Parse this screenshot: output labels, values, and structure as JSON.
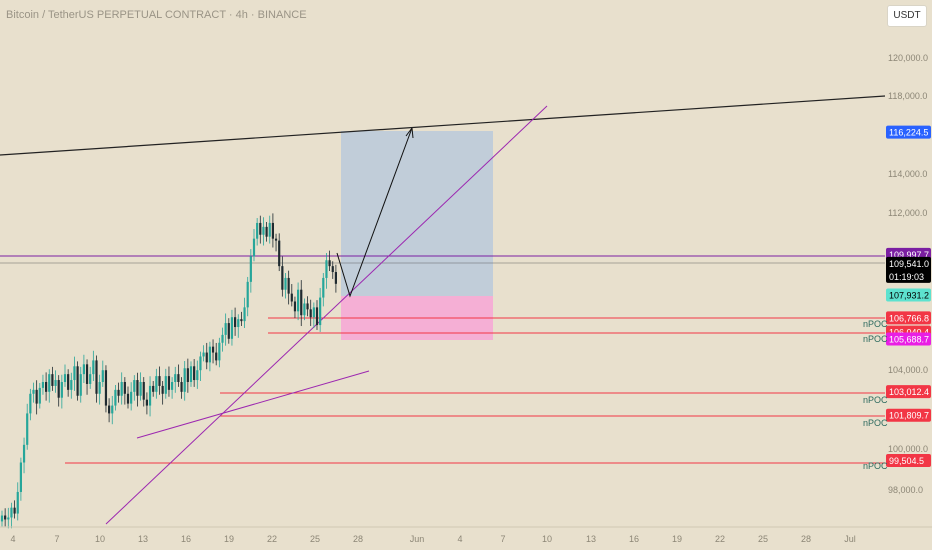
{
  "window": {
    "title": "Bitcoin / TetherUS PERPETUAL CONTRACT · 4h · BINANCE",
    "currency": "USDT"
  },
  "colors": {
    "background": "#e8e0cd",
    "candle_up": "#26a69a",
    "candle_down": "#1f2a30",
    "trendline": "#9c27b0",
    "channel_line": "#222222",
    "npoc_line": "#f23645",
    "target_zone": "#b0c4de",
    "stop_zone": "#f7a6d6",
    "current_price_tag": "#000000",
    "level_tag_purple": "#7b1fa2",
    "level_tag_teal": "#5de2cf",
    "level_tag_magenta": "#e91ee4",
    "level_tag_blue": "#2962ff"
  },
  "chart_data": {
    "type": "candlestick",
    "ylim": [
      96000,
      122000
    ],
    "y_ticks": [
      "120,000.0",
      "118,000.0",
      "114,000.0",
      "112,000.0",
      "104,000.0",
      "100,000.0",
      "98,000.0"
    ],
    "x_ticks": [
      "4",
      "7",
      "10",
      "13",
      "16",
      "19",
      "22",
      "25",
      "28",
      "Jun",
      "4",
      "7",
      "10",
      "13",
      "16",
      "19",
      "22",
      "25",
      "28",
      "Jul"
    ],
    "price_tags": [
      {
        "value": "116,224.5",
        "price": 116224.5,
        "style": "blue"
      },
      {
        "value": "109,997.7",
        "price": 109997.7,
        "style": "purple"
      },
      {
        "value": "109,541.0",
        "price": 109541.0,
        "style": "black",
        "sub": "01:19:03"
      },
      {
        "value": "107,931.2",
        "price": 107931.2,
        "style": "teal"
      },
      {
        "value": "106,766.8",
        "price": 106766.8,
        "style": "red"
      },
      {
        "value": "106,040.4",
        "price": 106040.4,
        "style": "red"
      },
      {
        "value": "105,688.7",
        "price": 105688.7,
        "style": "magenta"
      },
      {
        "value": "103,012.4",
        "price": 103012.4,
        "style": "red"
      },
      {
        "value": "101,809.7",
        "price": 101809.7,
        "style": "red"
      },
      {
        "value": "99,504.5",
        "price": 99504.5,
        "style": "red"
      }
    ],
    "npoc_labels": [
      "nPOC",
      "nPOC",
      "nPOC",
      "nPOC",
      "nPOC"
    ],
    "candles_close": [
      96700,
      96500,
      96600,
      97100,
      96800,
      97900,
      99400,
      100300,
      101900,
      102900,
      103100,
      102400,
      103200,
      103500,
      103000,
      103900,
      103300,
      103600,
      102700,
      103500,
      103900,
      103100,
      103600,
      104300,
      102800,
      103900,
      104400,
      103400,
      103900,
      104600,
      102900,
      103500,
      104100,
      102300,
      101900,
      102300,
      103100,
      102800,
      103500,
      102900,
      102400,
      103000,
      103600,
      102800,
      103500,
      102600,
      102300,
      103300,
      103000,
      103800,
      103300,
      102900,
      103800,
      103100,
      103500,
      103900,
      103500,
      103000,
      104200,
      103500,
      104300,
      103600,
      104100,
      104800,
      105000,
      104500,
      105300,
      105000,
      104600,
      105500,
      105900,
      106500,
      105700,
      106800,
      106300,
      106700,
      106600,
      107300,
      108600,
      109900,
      110800,
      111600,
      111000,
      111400,
      110900,
      111600,
      110800,
      110700,
      109400,
      108200,
      108800,
      108000,
      107600,
      107100,
      108200,
      106900,
      107500,
      107200,
      106800,
      107300,
      106400,
      107800,
      108800,
      109700,
      109400,
      109100,
      108500
    ]
  }
}
